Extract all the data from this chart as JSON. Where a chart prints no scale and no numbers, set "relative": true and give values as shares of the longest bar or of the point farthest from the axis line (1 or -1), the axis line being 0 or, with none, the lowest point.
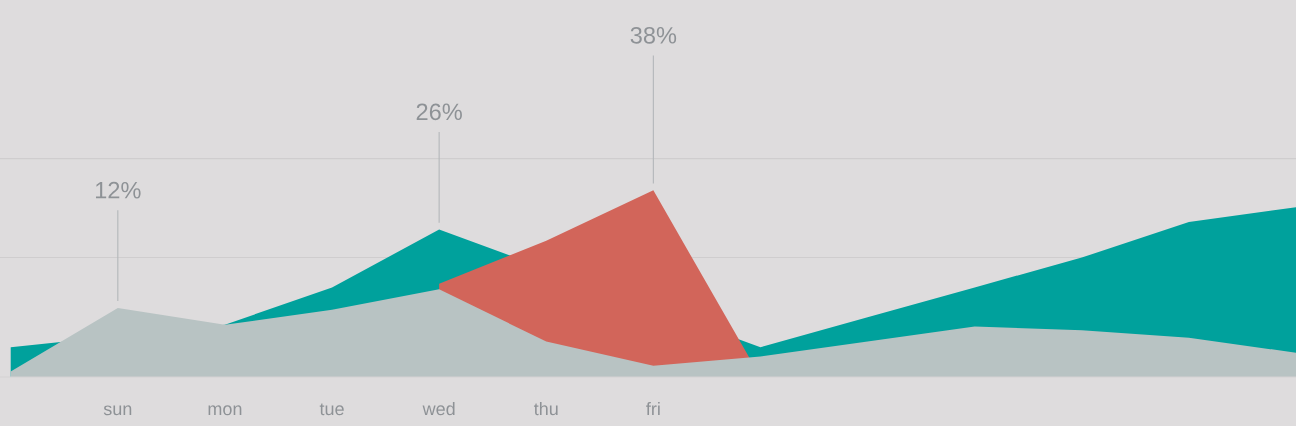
{
  "chart_data": {
    "type": "area",
    "relative": true,
    "categories": [
      null,
      "sun",
      "mon",
      "tue",
      "wed",
      "thu",
      "fri",
      null,
      null,
      null,
      null,
      null,
      null
    ],
    "series": [
      {
        "color": "#00a19c",
        "values": [
          0.16,
          null,
          0.28,
          0.48,
          0.79,
          null,
          null,
          0.16,
          0.32,
          0.48,
          0.64,
          0.83,
          0.91
        ]
      },
      {
        "color": "#d2655a",
        "values": [
          null,
          null,
          null,
          null,
          0.5,
          0.73,
          1,
          0,
          null,
          null,
          null,
          null,
          null
        ]
      },
      {
        "color": "#b8c3c3",
        "values": [
          0.03,
          0.37,
          0.28,
          0.36,
          0.47,
          0.19,
          0.06,
          0.11,
          0.19,
          0.27,
          0.25,
          0.21,
          0.13
        ]
      }
    ],
    "annotations": [
      {
        "text": "12%",
        "x": "sun"
      },
      {
        "text": "26%",
        "x": "wed"
      },
      {
        "text": "38%",
        "x": "fri"
      }
    ],
    "ref_lines": [
      {
        "axis": "y",
        "value": 0.64,
        "color": "#cfcdce"
      },
      {
        "axis": "y",
        "value": 1.17,
        "color": "#cfcdce"
      }
    ],
    "legend": false
  }
}
